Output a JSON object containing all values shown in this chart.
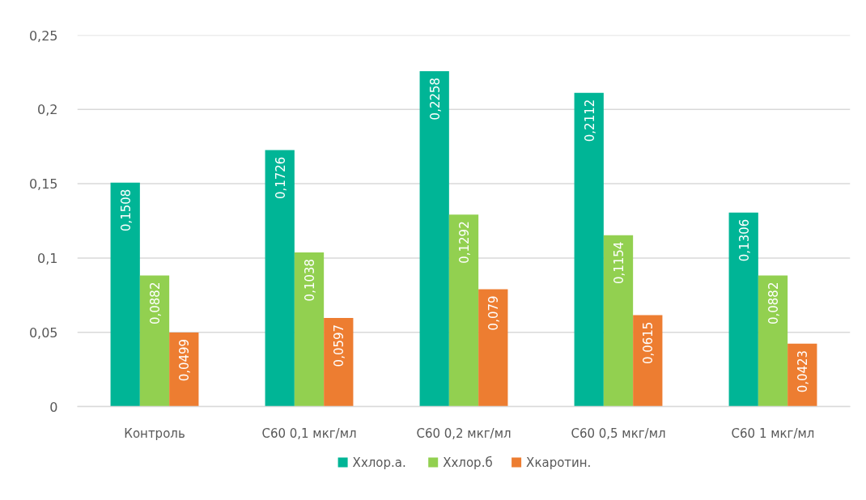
{
  "chart_data": {
    "type": "bar",
    "categories": [
      "Контроль",
      "C60 0,1 мкг/мл",
      "C60 0,2 мкг/мл",
      "C60 0,5 мкг/мл",
      "C60 1 мкг/мл"
    ],
    "series": [
      {
        "name": "Ххлор.а.",
        "color": "#00b596",
        "values": [
          0.1508,
          0.1726,
          0.2258,
          0.2112,
          0.1306
        ],
        "value_labels": [
          "0,1508",
          "0,1726",
          "0,2258",
          "0,2112",
          "0,1306"
        ]
      },
      {
        "name": "Ххлор.б",
        "color": "#92d050",
        "values": [
          0.0882,
          0.1038,
          0.1292,
          0.1154,
          0.0882
        ],
        "value_labels": [
          "0,0882",
          "0,1038",
          "0,1292",
          "0,1154",
          "0,0882"
        ]
      },
      {
        "name": "Хкаротин.",
        "color": "#ed7d31",
        "values": [
          0.0499,
          0.0597,
          0.079,
          0.0615,
          0.0423
        ],
        "value_labels": [
          "0,0499",
          "0,0597",
          "0,079",
          "0,0615",
          "0,0423"
        ]
      }
    ],
    "ylim": [
      0,
      0.25
    ],
    "yticks": [
      {
        "value": 0,
        "label": "0"
      },
      {
        "value": 0.05,
        "label": "0,05"
      },
      {
        "value": 0.1,
        "label": "0,1"
      },
      {
        "value": 0.15,
        "label": "0,15"
      },
      {
        "value": 0.2,
        "label": "0,2"
      },
      {
        "value": 0.25,
        "label": "0,25"
      }
    ],
    "grid": "y",
    "legend": "bottom"
  }
}
